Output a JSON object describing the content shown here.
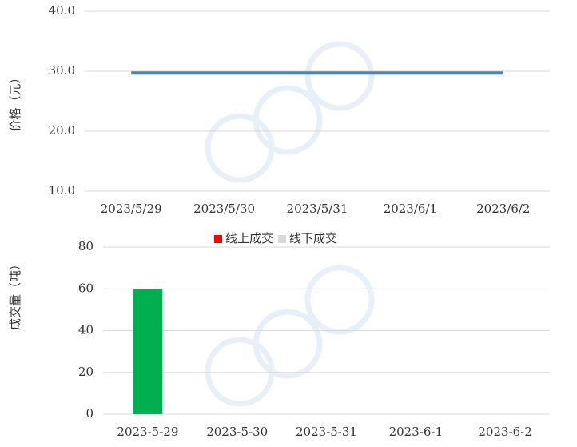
{
  "chart_data": [
    {
      "type": "line",
      "y_label": "价格（元）",
      "categories": [
        "2023/5/29",
        "2023/5/30",
        "2023/5/31",
        "2023/6/1",
        "2023/6/2"
      ],
      "values": [
        29.7,
        29.7,
        29.7,
        29.7,
        29.7
      ],
      "color": "#4f81bd",
      "ylim": [
        10,
        40
      ],
      "yticks": [
        {
          "value": 10,
          "label": "10.0"
        },
        {
          "value": 20,
          "label": "20.0"
        },
        {
          "value": 30,
          "label": "30.0"
        },
        {
          "value": 40,
          "label": "40.0"
        }
      ],
      "grid": true
    },
    {
      "type": "bar",
      "y_label": "成交量（吨）",
      "categories": [
        "2023-5-29",
        "2023-5-30",
        "2023-5-31",
        "2023-6-1",
        "2023-6-2"
      ],
      "series": [
        {
          "name": "线上成交",
          "color": "#ff0000",
          "values": [
            0,
            0,
            0,
            0,
            0
          ]
        },
        {
          "name": "线下成交",
          "color": "#d9d9d9",
          "values": [
            0,
            0,
            0,
            0,
            0
          ]
        },
        {
          "color": "#00b050",
          "values": [
            60,
            0,
            0,
            0,
            0
          ]
        }
      ],
      "ylim": [
        0,
        80
      ],
      "yticks": [
        0,
        20,
        40,
        60,
        80
      ],
      "grid": true
    }
  ]
}
